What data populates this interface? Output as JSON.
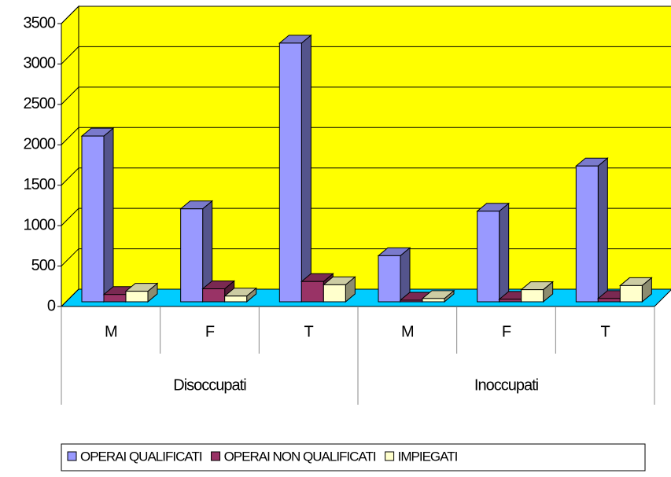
{
  "chart_data": {
    "type": "bar3d",
    "category_groups": [
      {
        "label": "Disoccupati",
        "categories": [
          "M",
          "F",
          "T"
        ]
      },
      {
        "label": "Inoccupati",
        "categories": [
          "M",
          "F",
          "T"
        ]
      }
    ],
    "series": [
      {
        "name": "OPERAI QUALIFICATI",
        "color": "#9999ff",
        "values": [
          2050,
          1150,
          3200,
          570,
          1120,
          1680
        ]
      },
      {
        "name": "OPERAI NON QUALIFICATI",
        "color": "#993366",
        "values": [
          90,
          160,
          250,
          20,
          30,
          40
        ]
      },
      {
        "name": "IMPIEGATI",
        "color": "#ffffcc",
        "values": [
          130,
          70,
          210,
          40,
          150,
          200
        ]
      }
    ],
    "ylim": [
      0,
      3500
    ],
    "yticks": [
      0,
      500,
      1000,
      1500,
      2000,
      2500,
      3000,
      3500
    ],
    "grid": true,
    "wall_color": "#ffff00",
    "floor_color": "#00ccff",
    "legend": "bottom"
  }
}
